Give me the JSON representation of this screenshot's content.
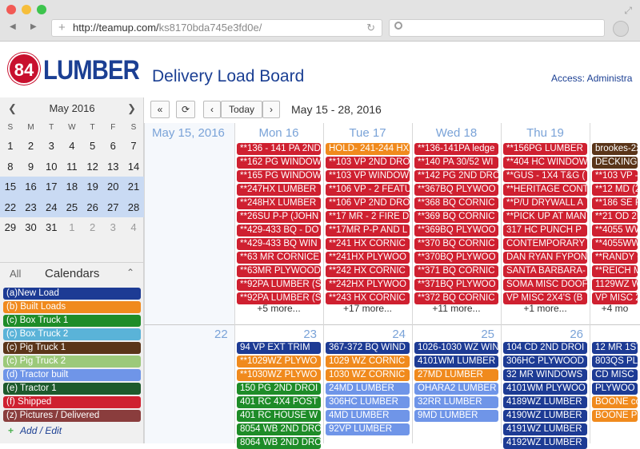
{
  "browser": {
    "url_host": "http://teamup.com/",
    "url_path": "ks8170bda745e3fd0e/"
  },
  "header": {
    "logo_number": "84",
    "logo_text": "LUMBER",
    "title": "Delivery Load Board",
    "access": "Access: Administra"
  },
  "mini_calendar": {
    "month": "May 2016",
    "dow": [
      "S",
      "M",
      "T",
      "W",
      "T",
      "F",
      "S"
    ],
    "weeks": [
      [
        "1",
        "2",
        "3",
        "4",
        "5",
        "6",
        "7"
      ],
      [
        "8",
        "9",
        "10",
        "11",
        "12",
        "13",
        "14"
      ],
      [
        "15",
        "16",
        "17",
        "18",
        "19",
        "20",
        "21"
      ],
      [
        "22",
        "23",
        "24",
        "25",
        "26",
        "27",
        "28"
      ],
      [
        "29",
        "30",
        "31",
        "1",
        "2",
        "3",
        "4"
      ]
    ]
  },
  "calendars_panel": {
    "all_label": "All",
    "title": "Calendars",
    "add_edit": "Add / Edit",
    "items": [
      {
        "label": "(a)New Load",
        "color": "#1d3b94"
      },
      {
        "label": "(b) Built Loads",
        "color": "#f08a1d"
      },
      {
        "label": "(c) Box Truck 1",
        "color": "#1e8c28"
      },
      {
        "label": "(c) Box Truck 2",
        "color": "#5ab3d8"
      },
      {
        "label": "(c) Pig Truck 1",
        "color": "#5a3519"
      },
      {
        "label": "(c) Pig Truck 2",
        "color": "#9cc97a"
      },
      {
        "label": "(d) Tractor built",
        "color": "#6f95e8"
      },
      {
        "label": "(e) Tractor 1",
        "color": "#1d5a2c"
      },
      {
        "label": "(f) Shipped",
        "color": "#cf2030"
      },
      {
        "label": "(z) Pictures / Delivered",
        "color": "#8a3d3d"
      }
    ]
  },
  "toolbar": {
    "collapse": "«",
    "refresh": "⟳",
    "prev": "‹",
    "today": "Today",
    "next": "›",
    "range": "May 15 - 28, 2016"
  },
  "week1": {
    "label": "May 15, 2016",
    "days": [
      {
        "header": "Mon 16",
        "more": "+5 more...",
        "events": [
          {
            "t": "**136 - 141 PA 2ND",
            "c": "#cf2030"
          },
          {
            "t": "**162 PG WINDOW",
            "c": "#cf2030"
          },
          {
            "t": "**165 PG WINDOW",
            "c": "#cf2030"
          },
          {
            "t": "**247HX LUMBER",
            "c": "#cf2030"
          },
          {
            "t": "**248HX LUMBER",
            "c": "#cf2030"
          },
          {
            "t": "**26SU P-P (JOHN",
            "c": "#cf2030"
          },
          {
            "t": "**429-433 BQ - DO",
            "c": "#cf2030"
          },
          {
            "t": "**429-433 BQ WIN",
            "c": "#cf2030"
          },
          {
            "t": "**63 MR CORNICE",
            "c": "#cf2030"
          },
          {
            "t": "**63MR PLYWOOD",
            "c": "#cf2030"
          },
          {
            "t": "**92PA LUMBER (S",
            "c": "#cf2030"
          },
          {
            "t": "**92PA LUMBER (S",
            "c": "#cf2030"
          }
        ]
      },
      {
        "header": "Tue 17",
        "more": "+17 more...",
        "events": [
          {
            "t": "HOLD- 241-244 HX",
            "c": "#f08a1d"
          },
          {
            "t": "**103 VP 2ND DRO",
            "c": "#cf2030"
          },
          {
            "t": "**103 VP WINDOW",
            "c": "#cf2030"
          },
          {
            "t": "**106 VP - 2 FEATU",
            "c": "#cf2030"
          },
          {
            "t": "**106 VP 2ND DRO",
            "c": "#cf2030"
          },
          {
            "t": "**17 MR - 2 FIRE D",
            "c": "#cf2030"
          },
          {
            "t": "**17MR P-P AND L",
            "c": "#cf2030"
          },
          {
            "t": "**241 HX CORNIC",
            "c": "#cf2030"
          },
          {
            "t": "**241HX PLYWOO",
            "c": "#cf2030"
          },
          {
            "t": "**242 HX CORNIC",
            "c": "#cf2030"
          },
          {
            "t": "**242HX PLYWOO",
            "c": "#cf2030"
          },
          {
            "t": "**243 HX CORNIC",
            "c": "#cf2030"
          }
        ]
      },
      {
        "header": "Wed 18",
        "more": "+11 more...",
        "events": [
          {
            "t": "**136-141PA ledge",
            "c": "#cf2030"
          },
          {
            "t": "**140 PA 30/52 WI",
            "c": "#cf2030"
          },
          {
            "t": "**142 PG 2ND DRO",
            "c": "#cf2030"
          },
          {
            "t": "**367BQ PLYWOO",
            "c": "#cf2030"
          },
          {
            "t": "**368 BQ CORNIC",
            "c": "#cf2030"
          },
          {
            "t": "**369 BQ CORNIC",
            "c": "#cf2030"
          },
          {
            "t": "**369BQ PLYWOO",
            "c": "#cf2030"
          },
          {
            "t": "**370 BQ CORNIC",
            "c": "#cf2030"
          },
          {
            "t": "**370BQ PLYWOO",
            "c": "#cf2030"
          },
          {
            "t": "**371 BQ CORNIC",
            "c": "#cf2030"
          },
          {
            "t": "**371BQ PLYWOO",
            "c": "#cf2030"
          },
          {
            "t": "**372 BQ CORNIC",
            "c": "#cf2030"
          }
        ]
      },
      {
        "header": "Thu 19",
        "more": "+1 more...",
        "events": [
          {
            "t": "**156PG LUMBER",
            "c": "#cf2030"
          },
          {
            "t": "**404 HC WINDOW",
            "c": "#cf2030"
          },
          {
            "t": "**GUS - 1X4 T&G (",
            "c": "#cf2030"
          },
          {
            "t": "**HERITAGE CONT",
            "c": "#cf2030"
          },
          {
            "t": "**P/U DRYWALL A",
            "c": "#cf2030"
          },
          {
            "t": "**PICK UP AT MAN",
            "c": "#cf2030"
          },
          {
            "t": "317 HC PUNCH P",
            "c": "#cf2030"
          },
          {
            "t": "CONTEMPORARY",
            "c": "#cf2030"
          },
          {
            "t": "DAN RYAN FYPON",
            "c": "#cf2030"
          },
          {
            "t": "SANTA BARBARA-",
            "c": "#cf2030"
          },
          {
            "t": "SOMA MISC DOOF",
            "c": "#cf2030"
          },
          {
            "t": "VP MISC 2X4'S (B",
            "c": "#cf2030"
          }
        ]
      },
      {
        "header": "",
        "more": "+4 mo",
        "events": [
          {
            "t": "brookes-2x",
            "c": "#5a3519"
          },
          {
            "t": "DECKING",
            "c": "#5a3519"
          },
          {
            "t": "**103 VP -",
            "c": "#cf2030"
          },
          {
            "t": "**12 MD (2",
            "c": "#cf2030"
          },
          {
            "t": "**186 SE R",
            "c": "#cf2030"
          },
          {
            "t": "**21 OD 2N",
            "c": "#cf2030"
          },
          {
            "t": "**4055 WW",
            "c": "#cf2030"
          },
          {
            "t": "**4055WW",
            "c": "#cf2030"
          },
          {
            "t": "**RANDY C",
            "c": "#cf2030"
          },
          {
            "t": "**REICH M",
            "c": "#cf2030"
          },
          {
            "t": "1129WZ W",
            "c": "#cf2030"
          },
          {
            "t": "VP MISC 2",
            "c": "#cf2030"
          }
        ]
      }
    ]
  },
  "week2": {
    "first_day": "22",
    "days": [
      {
        "header": "23",
        "events": [
          {
            "t": "94 VP EXT TRIM",
            "c": "#1d3b94"
          },
          {
            "t": "**1029WZ PLYWO",
            "c": "#f08a1d"
          },
          {
            "t": "**1030WZ PLYWO",
            "c": "#f08a1d"
          },
          {
            "t": "150 PG 2ND DROI",
            "c": "#1e8c28"
          },
          {
            "t": "401 RC 4X4 POST",
            "c": "#1e8c28"
          },
          {
            "t": "401 RC HOUSE W",
            "c": "#1e8c28"
          },
          {
            "t": "8054 WB 2ND DRO",
            "c": "#1e8c28"
          },
          {
            "t": "8064 WB 2ND DRO",
            "c": "#1e8c28"
          }
        ]
      },
      {
        "header": "24",
        "events": [
          {
            "t": "367-372 BQ WIND",
            "c": "#1d3b94"
          },
          {
            "t": "1029 WZ CORNIC",
            "c": "#f08a1d"
          },
          {
            "t": "1030 WZ CORNIC",
            "c": "#f08a1d"
          },
          {
            "t": "24MD LUMBER",
            "c": "#6f95e8"
          },
          {
            "t": "306HC LUMBER",
            "c": "#6f95e8"
          },
          {
            "t": "4MD LUMBER",
            "c": "#6f95e8"
          },
          {
            "t": "92VP LUMBER",
            "c": "#6f95e8"
          }
        ]
      },
      {
        "header": "25",
        "events": [
          {
            "t": "1026-1030 WZ WIN",
            "c": "#1d3b94"
          },
          {
            "t": "4101WM LUMBER",
            "c": "#1d3b94"
          },
          {
            "t": "27MD LUMBER",
            "c": "#f08a1d"
          },
          {
            "t": "OHARA2 LUMBER",
            "c": "#6f95e8"
          },
          {
            "t": "32RR LUMBER",
            "c": "#6f95e8"
          },
          {
            "t": "9MD LUMBER",
            "c": "#6f95e8"
          }
        ]
      },
      {
        "header": "26",
        "events": [
          {
            "t": "104 CD 2ND DROI",
            "c": "#1d3b94"
          },
          {
            "t": "306HC PLYWOOD",
            "c": "#1d3b94"
          },
          {
            "t": "32 MR WINDOWS",
            "c": "#1d3b94"
          },
          {
            "t": "4101WM PLYWOO",
            "c": "#1d3b94"
          },
          {
            "t": "4189WZ LUMBER",
            "c": "#1d3b94"
          },
          {
            "t": "4190WZ LUMBER",
            "c": "#1d3b94"
          },
          {
            "t": "4191WZ LUMBER",
            "c": "#1d3b94"
          },
          {
            "t": "4192WZ LUMBER",
            "c": "#1d3b94"
          }
        ]
      },
      {
        "header": "",
        "events": [
          {
            "t": "12 MR 1ST",
            "c": "#1d3b94"
          },
          {
            "t": "803QS PLY",
            "c": "#1d3b94"
          },
          {
            "t": "CD MISC",
            "c": "#1d3b94"
          },
          {
            "t": "PLYWOO",
            "c": "#1d3b94"
          },
          {
            "t": "BOONE co",
            "c": "#f08a1d"
          },
          {
            "t": "BOONE PL",
            "c": "#f08a1d"
          }
        ]
      }
    ]
  }
}
